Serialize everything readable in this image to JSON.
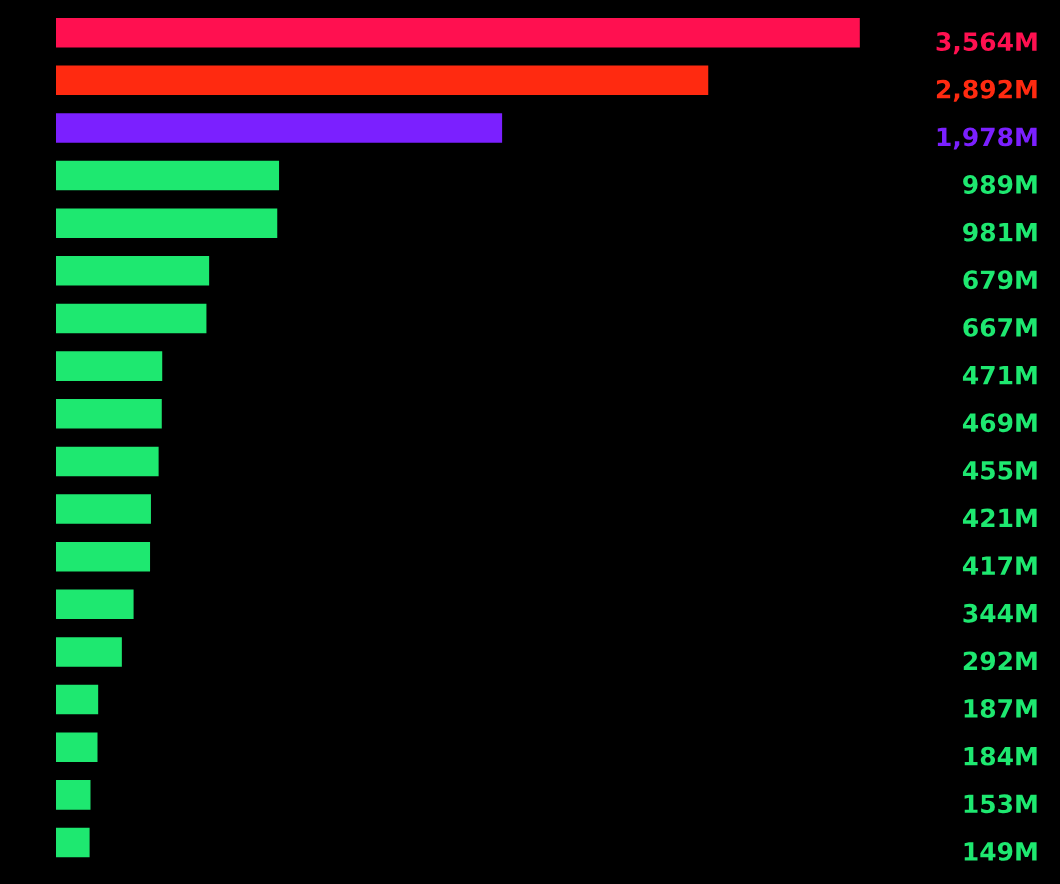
{
  "chart_data": {
    "type": "bar",
    "orientation": "horizontal",
    "categories": [
      null,
      null,
      null,
      null,
      null,
      null,
      null,
      null,
      null,
      null,
      null,
      null,
      null,
      null,
      null,
      null,
      null,
      null
    ],
    "values": [
      3564,
      2892,
      1978,
      989,
      981,
      679,
      667,
      471,
      469,
      455,
      421,
      417,
      344,
      292,
      187,
      184,
      153,
      149
    ],
    "colors": [
      "#ff1050",
      "#ff2a10",
      "#7b20ff",
      "#1ee870",
      "#1ee870",
      "#1ee870",
      "#1ee870",
      "#1ee870",
      "#1ee870",
      "#1ee870",
      "#1ee870",
      "#1ee870",
      "#1ee870",
      "#1ee870",
      "#1ee870",
      "#1ee870",
      "#1ee870",
      "#1ee870"
    ],
    "value_labels": [
      "3,564M",
      "2,892M",
      "1,978M",
      "989M",
      "981M",
      "679M",
      "667M",
      "471M",
      "469M",
      "455M",
      "421M",
      "417M",
      "344M",
      "292M",
      "187M",
      "184M",
      "153M",
      "149M"
    ],
    "tick_labels": false,
    "grid": false,
    "legend": false
  }
}
